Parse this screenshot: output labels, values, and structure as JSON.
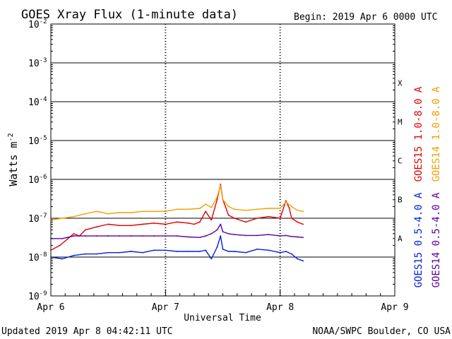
{
  "chart_data": {
    "type": "line",
    "title": "GOES Xray Flux (1-minute data)",
    "begin_label": "Begin:  2019 Apr 6 0000 UTC",
    "xlabel": "Universal Time",
    "ylabel_base": "Watts m",
    "ylabel_exp": "-2",
    "x_ticks": [
      "Apr 6",
      "Apr 7",
      "Apr 8",
      "Apr 9"
    ],
    "x_range_days": [
      0,
      3
    ],
    "y_scale": "log",
    "y_range": [
      1e-09,
      0.01
    ],
    "y_tick_exponents": [
      -2,
      -3,
      -4,
      -5,
      -6,
      -7,
      -8,
      -9
    ],
    "flare_classes": [
      {
        "label": "X",
        "level": 0.0001
      },
      {
        "label": "M",
        "level": 1e-05
      },
      {
        "label": "C",
        "level": 1e-06
      },
      {
        "label": "B",
        "level": 1e-07
      },
      {
        "label": "A",
        "level": 1e-08
      }
    ],
    "series": [
      {
        "name": "GOES15 1.0-8.0 A",
        "color": "#e00000",
        "x": [
          0.0,
          0.08,
          0.15,
          0.2,
          0.25,
          0.3,
          0.4,
          0.5,
          0.6,
          0.7,
          0.8,
          0.9,
          1.0,
          1.1,
          1.2,
          1.25,
          1.3,
          1.35,
          1.4,
          1.45,
          1.48,
          1.5,
          1.55,
          1.6,
          1.7,
          1.8,
          1.9,
          2.0,
          2.05,
          2.08,
          2.1,
          2.15,
          2.2
        ],
        "y": [
          1.5e-08,
          2e-08,
          3e-08,
          4e-08,
          3.5e-08,
          5e-08,
          6e-08,
          7e-08,
          6.5e-08,
          6.5e-08,
          7e-08,
          7.5e-08,
          7e-08,
          8e-08,
          7.5e-08,
          7e-08,
          8e-08,
          1.5e-07,
          9e-08,
          3e-07,
          7.5e-07,
          3e-07,
          1.2e-07,
          1e-07,
          8e-08,
          1e-07,
          1.1e-07,
          1e-07,
          2.8e-07,
          1.8e-07,
          1e-07,
          8e-08,
          7e-08
        ]
      },
      {
        "name": "GOES14 1.0-8.0 A",
        "color": "#f0a000",
        "x": [
          0.0,
          0.1,
          0.2,
          0.3,
          0.4,
          0.5,
          0.6,
          0.7,
          0.8,
          0.9,
          1.0,
          1.1,
          1.2,
          1.3,
          1.35,
          1.4,
          1.45,
          1.48,
          1.5,
          1.55,
          1.6,
          1.7,
          1.8,
          1.9,
          2.0,
          2.05,
          2.1,
          2.15,
          2.2
        ],
        "y": [
          9e-08,
          1e-07,
          1.1e-07,
          1.3e-07,
          1.5e-07,
          1.3e-07,
          1.4e-07,
          1.4e-07,
          1.5e-07,
          1.5e-07,
          1.5e-07,
          1.7e-07,
          1.7e-07,
          1.8e-07,
          2.3e-07,
          1.9e-07,
          3.5e-07,
          7e-07,
          3e-07,
          2e-07,
          1.7e-07,
          1.6e-07,
          1.7e-07,
          1.8e-07,
          1.8e-07,
          2.6e-07,
          2e-07,
          1.6e-07,
          1.5e-07
        ]
      },
      {
        "name": "GOES15 0.5-4.0 A",
        "color": "#0020e0",
        "x": [
          0.0,
          0.1,
          0.2,
          0.3,
          0.4,
          0.5,
          0.6,
          0.7,
          0.8,
          0.9,
          1.0,
          1.1,
          1.2,
          1.3,
          1.35,
          1.4,
          1.45,
          1.48,
          1.5,
          1.55,
          1.6,
          1.7,
          1.8,
          1.9,
          2.0,
          2.05,
          2.1,
          2.15,
          2.2
        ],
        "y": [
          1e-08,
          9e-09,
          1.1e-08,
          1.2e-08,
          1.2e-08,
          1.3e-08,
          1.3e-08,
          1.4e-08,
          1.3e-08,
          1.5e-08,
          1.5e-08,
          1.4e-08,
          1.4e-08,
          1.4e-08,
          1.5e-08,
          9e-09,
          1.8e-08,
          3.5e-08,
          1.6e-08,
          1.4e-08,
          1.4e-08,
          1.3e-08,
          1.6e-08,
          1.5e-08,
          1.3e-08,
          1.4e-08,
          1.2e-08,
          9e-09,
          8e-09
        ]
      },
      {
        "name": "GOES14 0.5-4.0 A",
        "color": "#5a00a0",
        "x": [
          0.0,
          0.1,
          0.2,
          0.3,
          0.4,
          0.5,
          0.6,
          0.7,
          0.8,
          0.9,
          1.0,
          1.1,
          1.2,
          1.3,
          1.35,
          1.4,
          1.45,
          1.48,
          1.5,
          1.55,
          1.6,
          1.7,
          1.8,
          1.9,
          2.0,
          2.05,
          2.1,
          2.15,
          2.2
        ],
        "y": [
          3e-08,
          3e-08,
          3.5e-08,
          3.5e-08,
          3.5e-08,
          3.5e-08,
          3.5e-08,
          3.5e-08,
          3.5e-08,
          3.5e-08,
          3.5e-08,
          3.5e-08,
          3.3e-08,
          3.2e-08,
          3.5e-08,
          4e-08,
          5e-08,
          7e-08,
          4.5e-08,
          4e-08,
          3.8e-08,
          3.6e-08,
          3.6e-08,
          3.8e-08,
          3.5e-08,
          3.6e-08,
          3.4e-08,
          3.3e-08,
          3.2e-08
        ]
      }
    ]
  },
  "footer": {
    "updated": "Updated 2019 Apr  8 04:42:11 UTC",
    "credit": "NOAA/SWPC Boulder, CO USA"
  }
}
